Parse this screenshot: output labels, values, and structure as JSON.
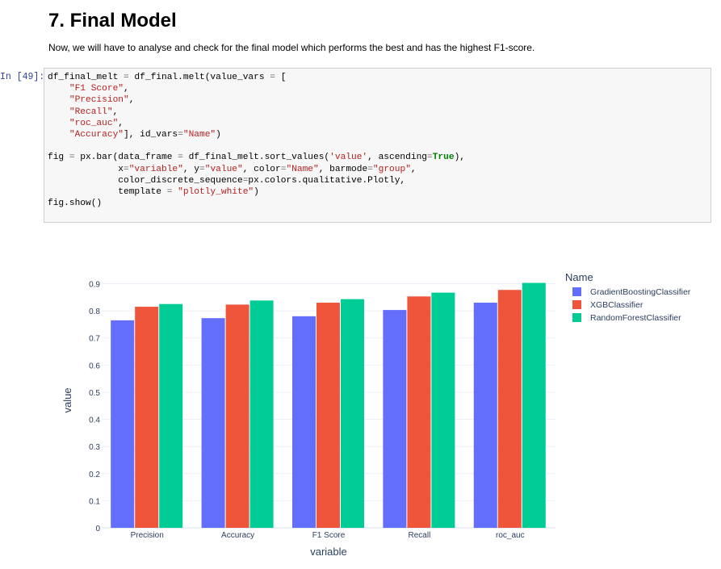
{
  "heading": "7. Final Model",
  "paragraph": "Now, we will have to analyse and check for the final model which performs the best and has the highest F1-score.",
  "cell": {
    "prompt": "In [49]:",
    "code_lines": [
      [
        {
          "t": "df_final_melt "
        },
        {
          "t": "=",
          "c": "o"
        },
        {
          "t": " df_final.melt(value_vars "
        },
        {
          "t": "=",
          "c": "o"
        },
        {
          "t": " ["
        }
      ],
      [
        {
          "t": "    "
        },
        {
          "t": "\"F1 Score\"",
          "c": "s"
        },
        {
          "t": ","
        }
      ],
      [
        {
          "t": "    "
        },
        {
          "t": "\"Precision\"",
          "c": "s"
        },
        {
          "t": ","
        }
      ],
      [
        {
          "t": "    "
        },
        {
          "t": "\"Recall\"",
          "c": "s"
        },
        {
          "t": ","
        }
      ],
      [
        {
          "t": "    "
        },
        {
          "t": "\"roc_auc\"",
          "c": "s"
        },
        {
          "t": ","
        }
      ],
      [
        {
          "t": "    "
        },
        {
          "t": "\"Accuracy\"",
          "c": "s"
        },
        {
          "t": "], id_vars"
        },
        {
          "t": "=",
          "c": "o"
        },
        {
          "t": "\"Name\"",
          "c": "s"
        },
        {
          "t": ")"
        }
      ],
      [
        {
          "t": ""
        }
      ],
      [
        {
          "t": "fig "
        },
        {
          "t": "=",
          "c": "o"
        },
        {
          "t": " px.bar(data_frame "
        },
        {
          "t": "=",
          "c": "o"
        },
        {
          "t": " df_final_melt.sort_values("
        },
        {
          "t": "'value'",
          "c": "s"
        },
        {
          "t": ", ascending"
        },
        {
          "t": "=",
          "c": "o"
        },
        {
          "t": "True",
          "c": "k"
        },
        {
          "t": "),"
        }
      ],
      [
        {
          "t": "             x"
        },
        {
          "t": "=",
          "c": "o"
        },
        {
          "t": "\"variable\"",
          "c": "s"
        },
        {
          "t": ", y"
        },
        {
          "t": "=",
          "c": "o"
        },
        {
          "t": "\"value\"",
          "c": "s"
        },
        {
          "t": ", color"
        },
        {
          "t": "=",
          "c": "o"
        },
        {
          "t": "\"Name\"",
          "c": "s"
        },
        {
          "t": ", barmode"
        },
        {
          "t": "=",
          "c": "o"
        },
        {
          "t": "\"group\"",
          "c": "s"
        },
        {
          "t": ","
        }
      ],
      [
        {
          "t": "             color_discrete_sequence"
        },
        {
          "t": "=",
          "c": "o"
        },
        {
          "t": "px.colors.qualitative.Plotly,"
        }
      ],
      [
        {
          "t": "             template "
        },
        {
          "t": "=",
          "c": "o"
        },
        {
          "t": " "
        },
        {
          "t": "\"plotly_white\"",
          "c": "s"
        },
        {
          "t": ")"
        }
      ],
      [
        {
          "t": "fig.show()"
        }
      ]
    ]
  },
  "chart_data": {
    "type": "bar",
    "barmode": "group",
    "categories": [
      "Precision",
      "Accuracy",
      "F1 Score",
      "Recall",
      "roc_auc"
    ],
    "series": [
      {
        "name": "GradientBoostingClassifier",
        "color": "#636efa",
        "values": [
          0.765,
          0.773,
          0.78,
          0.803,
          0.83
        ]
      },
      {
        "name": "XGBClassifier",
        "color": "#ef553b",
        "values": [
          0.815,
          0.823,
          0.83,
          0.853,
          0.877
        ]
      },
      {
        "name": "RandomForestClassifier",
        "color": "#00cc96",
        "values": [
          0.825,
          0.838,
          0.843,
          0.867,
          0.903
        ]
      }
    ],
    "xlabel": "variable",
    "ylabel": "value",
    "ylim": [
      0,
      0.9
    ],
    "yticks": [
      "0",
      "0.1",
      "0.2",
      "0.3",
      "0.4",
      "0.5",
      "0.6",
      "0.7",
      "0.8",
      "0.9"
    ],
    "legend_title": "Name",
    "legend_position": "right",
    "grid": true
  }
}
